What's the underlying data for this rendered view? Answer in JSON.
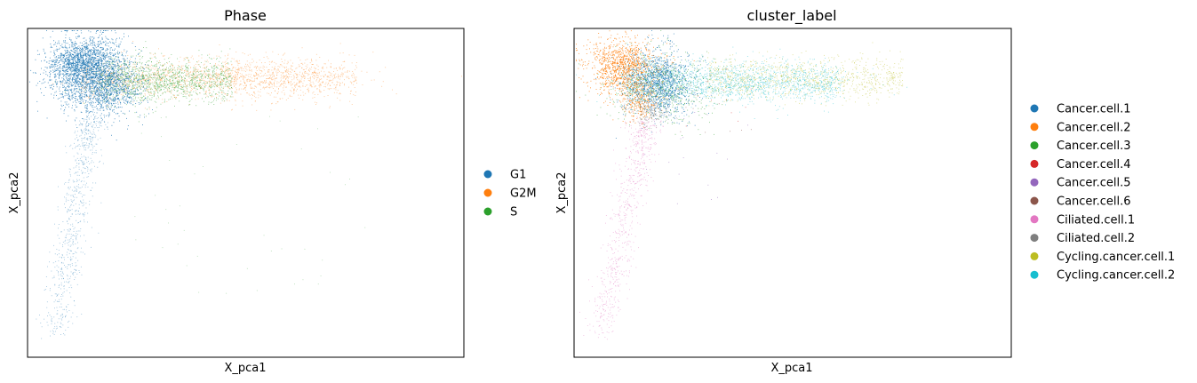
{
  "chart_data": [
    {
      "type": "scatter",
      "title": "Phase",
      "xlabel": "X_pca1",
      "ylabel": "X_pca2",
      "xticks": false,
      "yticks": false,
      "grid": false,
      "legend_placement": "right",
      "series": [
        {
          "name": "G1",
          "color": "#1f77b4"
        },
        {
          "name": "G2M",
          "color": "#ff7f0e"
        },
        {
          "name": "S",
          "color": "#2ca02c"
        }
      ]
    },
    {
      "type": "scatter",
      "title": "cluster_label",
      "xlabel": "X_pca1",
      "ylabel": "X_pca2",
      "xticks": false,
      "yticks": false,
      "grid": false,
      "legend_placement": "right",
      "series": [
        {
          "name": "Cancer.cell.1",
          "color": "#1f77b4"
        },
        {
          "name": "Cancer.cell.2",
          "color": "#ff7f0e"
        },
        {
          "name": "Cancer.cell.3",
          "color": "#2ca02c"
        },
        {
          "name": "Cancer.cell.4",
          "color": "#d62728"
        },
        {
          "name": "Cancer.cell.5",
          "color": "#9467bd"
        },
        {
          "name": "Cancer.cell.6",
          "color": "#8c564b"
        },
        {
          "name": "Ciliated.cell.1",
          "color": "#e377c2"
        },
        {
          "name": "Ciliated.cell.2",
          "color": "#7f7f7f"
        },
        {
          "name": "Cycling.cancer.cell.1",
          "color": "#bcbd22"
        },
        {
          "name": "Cycling.cancer.cell.2",
          "color": "#17becf"
        }
      ]
    }
  ]
}
